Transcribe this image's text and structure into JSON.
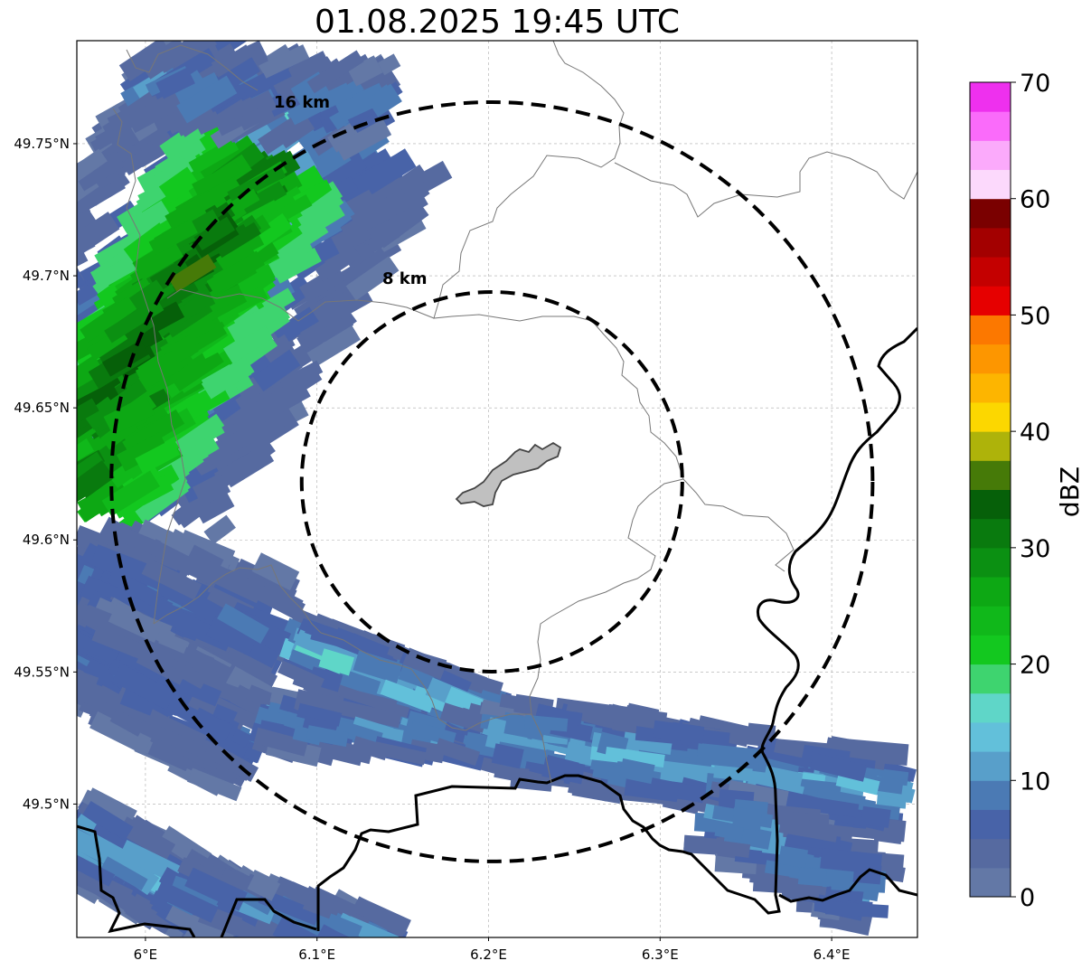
{
  "title": "01.08.2025 19:45 UTC",
  "map": {
    "lon_range": [
      5.96,
      6.45
    ],
    "lat_range": [
      49.4495,
      49.789
    ],
    "lon_ticks": [
      {
        "value": 6.0,
        "label": "6°E"
      },
      {
        "value": 6.1,
        "label": "6.1°E"
      },
      {
        "value": 6.2,
        "label": "6.2°E"
      },
      {
        "value": 6.3,
        "label": "6.3°E"
      },
      {
        "value": 6.4,
        "label": "6.4°E"
      }
    ],
    "lat_ticks": [
      {
        "value": 49.5,
        "label": "49.5°N"
      },
      {
        "value": 49.55,
        "label": "49.55°N"
      },
      {
        "value": 49.6,
        "label": "49.6°N"
      },
      {
        "value": 49.65,
        "label": "49.65°N"
      },
      {
        "value": 49.7,
        "label": "49.7°N"
      },
      {
        "value": 49.75,
        "label": "49.75°N"
      }
    ],
    "gridlines": true,
    "center": {
      "lon": 6.202,
      "lat": 49.622
    },
    "rings": [
      {
        "radius_km": 8,
        "label": "8 km"
      },
      {
        "radius_km": 16,
        "label": "16 km"
      }
    ]
  },
  "colorbar": {
    "label": "dBZ",
    "min": 0,
    "max": 70,
    "step": 2.5,
    "ticks": [
      0,
      10,
      20,
      30,
      40,
      50,
      60,
      70
    ],
    "colors": [
      "#6378a6",
      "#566aa0",
      "#4863a8",
      "#4b7ab4",
      "#589fca",
      "#62c0da",
      "#5fd6c8",
      "#3ed46f",
      "#13c81f",
      "#10b81a",
      "#0da814",
      "#0b9012",
      "#097a0e",
      "#066009",
      "#467a08",
      "#aeb30a",
      "#fcd700",
      "#fdb500",
      "#fd9600",
      "#fc7800",
      "#e60000",
      "#c40000",
      "#a30000",
      "#7a0000",
      "#fcd9fc",
      "#fbaafb",
      "#fa6bfa",
      "#ee30ee"
    ]
  }
}
